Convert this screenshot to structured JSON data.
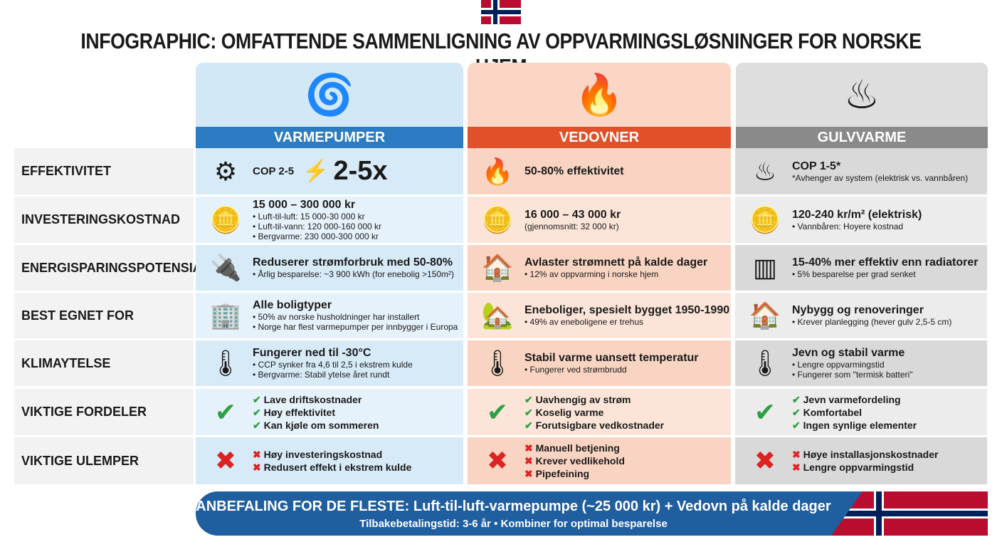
{
  "title": "INFOGRAPHIC: OMFATTENDE SAMMENLIGNING AV OPPVARMINGSLØSNINGER FOR NORSKE HJEM",
  "columns": [
    {
      "name": "VARMEPUMPER",
      "icon": "heat-pump-icon",
      "glyph": "❄",
      "color": "#2b7cc2"
    },
    {
      "name": "VEDOVNER",
      "icon": "wood-stove-icon",
      "glyph": "🔥",
      "color": "#e0512a"
    },
    {
      "name": "GULVVARME",
      "icon": "floor-heating-icon",
      "glyph": "♨",
      "color": "#8a8a8a"
    }
  ],
  "rows": [
    {
      "label": "EFFEKTIVITET",
      "cells": [
        {
          "icon": "gear-arrow-icon",
          "glyph": "⚙",
          "cop": "COP 2-5",
          "big": "2-5x",
          "main": "",
          "sub": []
        },
        {
          "icon": "flame-percent-icon",
          "glyph": "🔥",
          "main": "50-80% effektivitet",
          "sub": []
        },
        {
          "icon": "floor-heat-icon",
          "glyph": "♨",
          "main": "COP 1-5*",
          "note": "*Avhenger av system (elektrisk vs. vannbåren)",
          "sub": []
        }
      ]
    },
    {
      "label": "INVESTERINGSKOSTNAD",
      "cells": [
        {
          "icon": "coins-icon",
          "glyph": "🪙",
          "main": "15 000 – 300 000 kr",
          "sub": [
            "Luft-til-luft: 15 000-30 000 kr",
            "Luft-til-vann: 120 000-160 000 kr",
            "Bergvarme: 230 000-300 000 kr"
          ]
        },
        {
          "icon": "coins-icon",
          "glyph": "🪙",
          "main": "16 000 – 43 000 kr",
          "note": "(gjennomsnitt: 32 000 kr)",
          "sub": []
        },
        {
          "icon": "coins-icon",
          "glyph": "🪙",
          "main": "120-240 kr/m² (elektrisk)",
          "sub": [
            "Vannbåren: Hoyere kostnad"
          ]
        }
      ]
    },
    {
      "label": "ENERGISPARINGSPOTENSIAL",
      "cells": [
        {
          "icon": "plug-icon",
          "glyph": "🔌",
          "main": "Reduserer strømforbruk med 50-80%",
          "sub": [
            "Årlig besparelse: ~3 900 kWh (for enebolig >150m²)"
          ]
        },
        {
          "icon": "house-grid-icon",
          "glyph": "🏠",
          "main": "Avlaster strømnett på kalde dager",
          "sub": [
            "12% av oppvarming i norske hjem"
          ]
        },
        {
          "icon": "radiator-vs-icon",
          "glyph": "▥",
          "main": "15-40% mer effektiv enn radiatorer",
          "sub": [
            "5% besparelse per grad senket"
          ]
        }
      ]
    },
    {
      "label": "BEST EGNET FOR",
      "cells": [
        {
          "icon": "buildings-icon",
          "glyph": "🏢",
          "main": "Alle boligtyper",
          "sub": [
            "50% av norske husholdninger har installert",
            "Norge har flest varmepumper per innbygger i Europa"
          ]
        },
        {
          "icon": "wooden-house-icon",
          "glyph": "🏡",
          "main": "Eneboliger, spesielt bygget 1950-1990",
          "sub": [
            "49% av eneboligene er trehus"
          ]
        },
        {
          "icon": "house-tools-icon",
          "glyph": "🏠",
          "main": "Nybygg og renoveringer",
          "sub": [
            "Krever planlegging (hever gulv 2,5-5 cm)"
          ]
        }
      ]
    },
    {
      "label": "KLIMAYTELSE",
      "cells": [
        {
          "icon": "thermometer-snow-icon",
          "glyph": "🌡",
          "main": "Fungerer ned til -30°C",
          "sub": [
            "CCP synker fra 4,6 til 2,5 i ekstrem kulde",
            "Bergvarme: Stabil ytelse året rundt"
          ]
        },
        {
          "icon": "thermometer-flame-icon",
          "glyph": "🌡",
          "main": "Stabil varme uansett temperatur",
          "sub": [
            "Fungerer ved strømbrudd"
          ]
        },
        {
          "icon": "thermometer-heat-icon",
          "glyph": "🌡",
          "main": "Jevn og stabil varme",
          "sub": [
            "Lengre oppvarmingstid",
            "Fungerer som \"termisk batteri\""
          ]
        }
      ]
    },
    {
      "label": "VIKTIGE FORDELER",
      "type": "pros",
      "cells": [
        {
          "items": [
            "Lave driftskostnader",
            "Høy effektivitet",
            "Kan kjøle om sommeren"
          ]
        },
        {
          "items": [
            "Uavhengig av strøm",
            "Koselig varme",
            "Forutsigbare vedkostnader"
          ]
        },
        {
          "items": [
            "Jevn varmefordeling",
            "Komfortabel",
            "Ingen synlige elementer"
          ]
        }
      ]
    },
    {
      "label": "VIKTIGE ULEMPER",
      "type": "cons",
      "cells": [
        {
          "items": [
            "Høy investeringskostnad",
            "Redusert effekt i ekstrem kulde"
          ]
        },
        {
          "items": [
            "Manuell betjening",
            "Krever vedlikehold",
            "Pipefeining"
          ]
        },
        {
          "items": [
            "Høye installasjonskostnader",
            "Lengre oppvarmingstid"
          ]
        }
      ]
    }
  ],
  "banner": {
    "line1": "ANBEFALING FOR DE FLESTE: Luft-til-luft-varmepumpe (~25 000 kr) + Vedovn på kalde dager",
    "line2": "Tilbakebetalingstid: 3-6 år   •   Kombiner for optimal besparelse"
  },
  "colors": {
    "blue": "#2b7cc2",
    "orange": "#e0512a",
    "gray": "#8a8a8a",
    "check": "#2ea043",
    "cross": "#dd2222"
  }
}
